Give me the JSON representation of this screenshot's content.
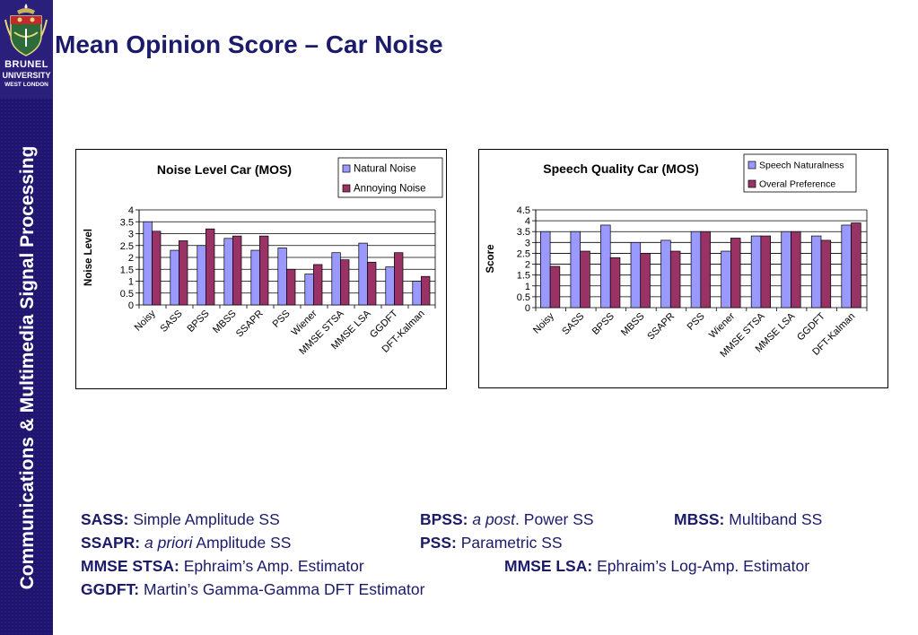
{
  "slide": {
    "title": "Mean Opinion Score – Car Noise",
    "sidebar_title": "Communications & Multimedia Signal Processing"
  },
  "logo": {
    "line1": "BRUNEL",
    "line2": "UNIVERSITY",
    "line3": "WEST LONDON"
  },
  "colors": {
    "sidebar": "#1f1470",
    "title": "#1c1a6a",
    "series_blue": "#9999ff",
    "series_maroon": "#993366"
  },
  "chart_data": [
    {
      "type": "bar",
      "title": "Noise Level Car (MOS)",
      "xlabel": "",
      "ylabel": "Noise Level",
      "ylim": [
        0,
        4
      ],
      "yticks": [
        "0",
        "0.5",
        "1",
        "1.5",
        "2",
        "2.5",
        "3",
        "3.5",
        "4"
      ],
      "categories": [
        "Noisy",
        "SASS",
        "BPSS",
        "MBSS",
        "SSAPR",
        "PSS",
        "Wiener",
        "MMSE STSA",
        "MMSE LSA",
        "GGDFT",
        "DFT-Kalman"
      ],
      "series": [
        {
          "name": "Natural Noise",
          "values": [
            3.5,
            2.3,
            2.5,
            2.8,
            2.3,
            2.4,
            1.3,
            2.2,
            2.6,
            1.6,
            1.0
          ]
        },
        {
          "name": "Annoying Noise",
          "values": [
            3.1,
            2.7,
            3.2,
            2.9,
            2.9,
            1.5,
            1.7,
            1.9,
            1.8,
            2.2,
            1.2
          ]
        }
      ],
      "legend": "top-right",
      "grid": true
    },
    {
      "type": "bar",
      "title": "Speech Quality Car (MOS)",
      "xlabel": "",
      "ylabel": "Score",
      "ylim": [
        0,
        4.5
      ],
      "yticks": [
        "0",
        "0.5",
        "1",
        "1.5",
        "2",
        "2.5",
        "3",
        "3.5",
        "4",
        "4.5"
      ],
      "categories": [
        "Noisy",
        "SASS",
        "BPSS",
        "MBSS",
        "SSAPR",
        "PSS",
        "Wiener",
        "MMSE STSA",
        "MMSE LSA",
        "GGDFT",
        "DFT-Kalman"
      ],
      "series": [
        {
          "name": "Speech Naturalness",
          "values": [
            3.5,
            3.5,
            3.8,
            3.0,
            3.1,
            3.5,
            2.6,
            3.3,
            3.5,
            3.3,
            3.8
          ]
        },
        {
          "name": "Overal Preference",
          "values": [
            1.9,
            2.6,
            2.3,
            2.5,
            2.6,
            3.5,
            3.2,
            3.3,
            3.5,
            3.1,
            3.9
          ]
        }
      ],
      "legend": "top-right",
      "grid": true
    }
  ],
  "abbreviations": {
    "sass_key": "SASS:",
    "sass_val": "Simple Amplitude SS",
    "bpss_key": "BPSS:",
    "bpss_val_italic": "a post",
    "bpss_val": ". Power SS",
    "mbss_key": "MBSS:",
    "mbss_val": "Multiband SS",
    "ssapr_key": "SSAPR:",
    "ssapr_val_italic": "a priori",
    "ssapr_val": " Amplitude SS",
    "pss_key": "PSS:",
    "pss_val": "Parametric SS",
    "stsa_key": "MMSE STSA:",
    "stsa_val": "Ephraim’s Amp. Estimator",
    "lsa_key": "MMSE LSA:",
    "lsa_val": "Ephraim’s Log-Amp. Estimator",
    "ggdft_key": "GGDFT:",
    "ggdft_val": "Martin’s Gamma-Gamma DFT Estimator"
  }
}
